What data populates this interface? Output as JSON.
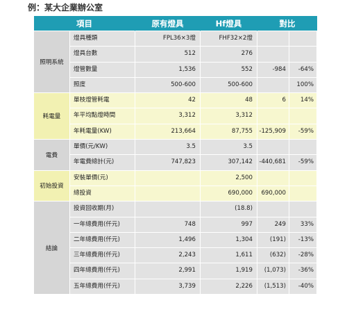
{
  "caption": "例：某大企業辦公室",
  "header": [
    "項目",
    "原有燈具",
    "Hf燈具",
    "對比"
  ],
  "groups": [
    {
      "label": "照明系統",
      "color": "gray",
      "rows": [
        [
          "燈具種類",
          "FPL36×3燈",
          "FHF32×2燈",
          "",
          ""
        ],
        [
          "燈具台數",
          "512",
          "276",
          "",
          ""
        ],
        [
          "燈管數量",
          "1,536",
          "552",
          "-984",
          "-64%"
        ],
        [
          "照度",
          "500-600",
          "500-600",
          "",
          "100%"
        ]
      ]
    },
    {
      "label": "耗電量",
      "color": "yellow",
      "rows": [
        [
          "單枝燈管耗電",
          "42",
          "48",
          "6",
          "14%"
        ],
        [
          "年平均點燈時間",
          "3,312",
          "3,312",
          "",
          ""
        ],
        [
          "年耗電量(KW)",
          "213,664",
          "87,755",
          "-125,909",
          "-59%"
        ]
      ]
    },
    {
      "label": "電費",
      "color": "gray",
      "rows": [
        [
          "單價(元/KW)",
          "3.5",
          "3.5",
          "",
          ""
        ],
        [
          "年電費總計(元)",
          "747,823",
          "307,142",
          "-440,681",
          "-59%"
        ]
      ]
    },
    {
      "label": "初始投資",
      "color": "yellow",
      "rows": [
        [
          "安裝單價(元)",
          "",
          "2,500",
          "",
          ""
        ],
        [
          "總投資",
          "",
          "690,000",
          "690,000",
          ""
        ]
      ]
    },
    {
      "label": "結論",
      "color": "gray",
      "rows": [
        [
          "投資回收期(月)",
          "",
          "(18.8)",
          "",
          ""
        ],
        [
          "一年總費用(仟元)",
          "748",
          "997",
          "249",
          "33%"
        ],
        [
          "二年總費用(仟元)",
          "1,496",
          "1,304",
          "(191)",
          "-13%"
        ],
        [
          "三年總費用(仟元)",
          "2,243",
          "1,611",
          "(632)",
          "-28%"
        ],
        [
          "四年總費用(仟元)",
          "2,991",
          "1,919",
          "(1,073)",
          "-36%"
        ],
        [
          "五年總費用(仟元)",
          "3,739",
          "2,226",
          "(1,513)",
          "-40%"
        ]
      ]
    }
  ]
}
